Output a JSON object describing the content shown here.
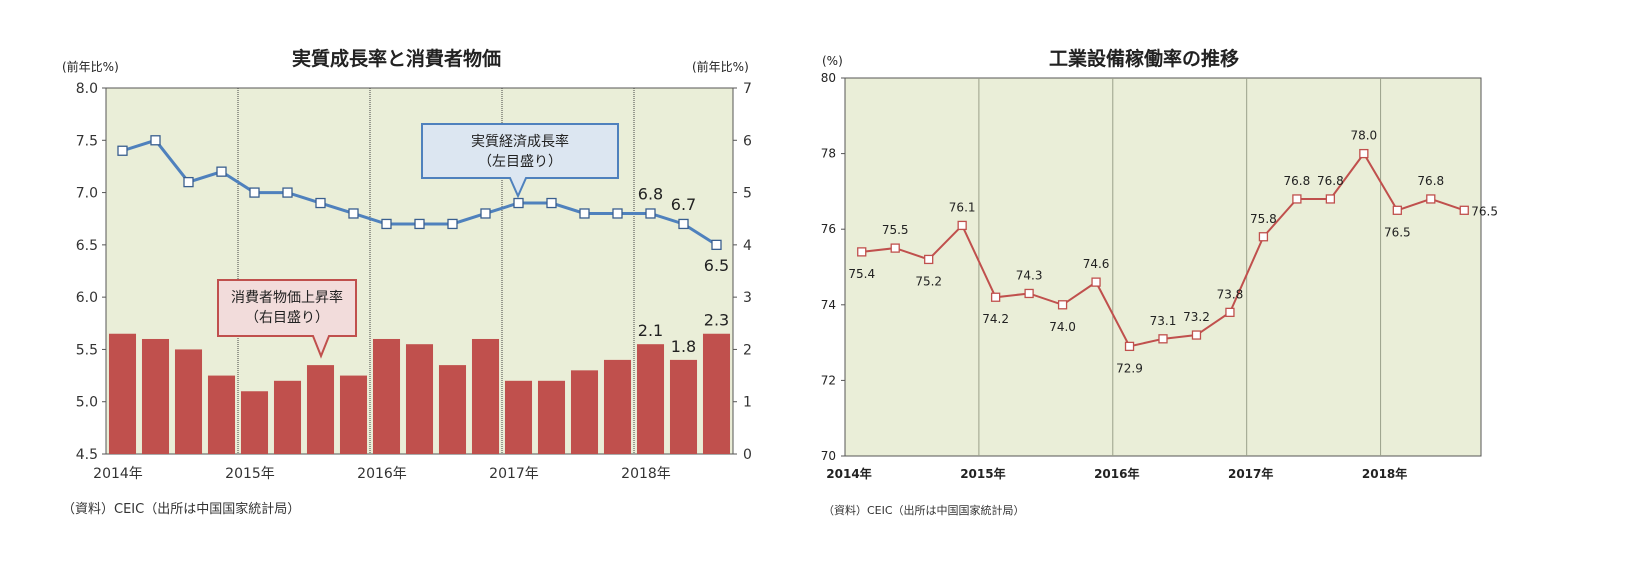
{
  "chart_data": [
    {
      "type": "bar+line",
      "title": "実質成長率と消費者物価",
      "y_left_unit": "(前年比%)",
      "y_right_unit": "(前年比%)",
      "y_left_range": [
        4.5,
        8.0
      ],
      "y_left_ticks": [
        "8.0",
        "7.5",
        "7.0",
        "6.5",
        "6.0",
        "5.5",
        "5.0",
        "4.5"
      ],
      "y_right_range": [
        0,
        7
      ],
      "y_right_ticks": [
        "7",
        "6",
        "5",
        "4",
        "3",
        "2",
        "1",
        "0"
      ],
      "x_labels": [
        "2014年",
        "2015年",
        "2016年",
        "2017年",
        "2018年"
      ],
      "background": "#eaeed8",
      "series": [
        {
          "name": "実質経済成長率",
          "axis": "left",
          "kind": "line",
          "color": "#4f81bd",
          "values": [
            7.4,
            7.5,
            7.1,
            7.2,
            7.0,
            7.0,
            6.9,
            6.8,
            6.7,
            6.7,
            6.7,
            6.8,
            6.9,
            6.9,
            6.8,
            6.8,
            6.8,
            6.7,
            6.5
          ]
        },
        {
          "name": "消費者物価上昇率",
          "axis": "right",
          "kind": "bar",
          "color": "#c0504d",
          "values": [
            2.3,
            2.2,
            2.0,
            1.5,
            1.2,
            1.4,
            1.7,
            1.5,
            2.2,
            2.1,
            1.7,
            2.2,
            1.4,
            1.4,
            1.6,
            1.8,
            2.1,
            1.8,
            2.3
          ]
        }
      ],
      "data_labels": [
        {
          "series": 0,
          "index": 16,
          "text": "6.8"
        },
        {
          "series": 0,
          "index": 17,
          "text": "6.7"
        },
        {
          "series": 0,
          "index": 18,
          "text": "6.5"
        },
        {
          "series": 1,
          "index": 16,
          "text": "2.1"
        },
        {
          "series": 1,
          "index": 17,
          "text": "1.8"
        },
        {
          "series": 1,
          "index": 18,
          "text": "2.3"
        }
      ],
      "callouts": [
        {
          "lines": [
            "実質経済成長率",
            "（左目盛り）"
          ],
          "fill": "#dce6f1",
          "stroke": "#4f81bd"
        },
        {
          "lines": [
            "消費者物価上昇率",
            "（右目盛り）"
          ],
          "fill": "#f2dcdb",
          "stroke": "#c0504d"
        }
      ],
      "source": "（資料）CEIC（出所は中国国家統計局）"
    },
    {
      "type": "line",
      "title": "工業設備稼働率の推移",
      "y_unit": "(%)",
      "y_range": [
        70,
        80
      ],
      "y_ticks": [
        "80",
        "78",
        "76",
        "74",
        "72",
        "70"
      ],
      "x_labels": [
        "2014年",
        "2015年",
        "2016年",
        "2017年",
        "2018年"
      ],
      "background": "#eaeed8",
      "series": [
        {
          "kind": "line",
          "color": "#c0504d",
          "values": [
            75.4,
            75.5,
            75.2,
            76.1,
            74.2,
            74.3,
            74.0,
            74.6,
            72.9,
            73.1,
            73.2,
            73.8,
            75.8,
            76.8,
            76.8,
            78.0,
            76.5,
            76.8,
            76.5
          ],
          "labels": [
            "75.4",
            "75.5",
            "75.2",
            "76.1",
            "74.2",
            "74.3",
            "74.0",
            "74.6",
            "72.9",
            "73.1",
            "73.2",
            "73.8",
            "75.8",
            "76.8",
            "76.8",
            "78.0",
            "76.5",
            "76.8",
            "76.5"
          ]
        }
      ],
      "source": "（資料）CEIC（出所は中国国家統計局）"
    }
  ]
}
